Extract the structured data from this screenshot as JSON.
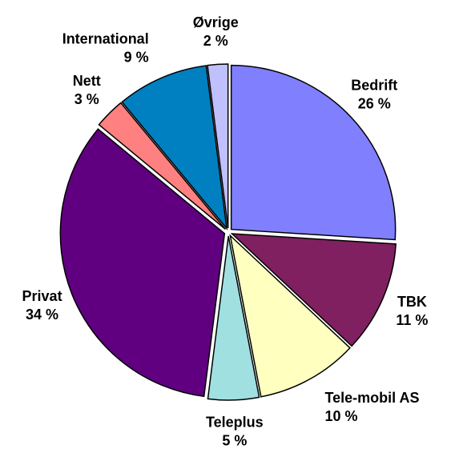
{
  "chart_data": {
    "type": "pie",
    "categories": [
      "Bedrift",
      "TBK",
      "Tele-mobil AS",
      "Teleplus",
      "Privat",
      "Nett",
      "International",
      "Øvrige"
    ],
    "values": [
      26,
      11,
      10,
      5,
      34,
      3,
      9,
      2
    ],
    "value_labels": [
      "26 %",
      "11 %",
      "10 %",
      "5 %",
      "34 %",
      "3 %",
      "9 %",
      "2 %"
    ],
    "colors": [
      "#8080ff",
      "#802060",
      "#ffffc0",
      "#a0e0e0",
      "#600080",
      "#ff8080",
      "#0080c0",
      "#c0c0ff"
    ]
  }
}
